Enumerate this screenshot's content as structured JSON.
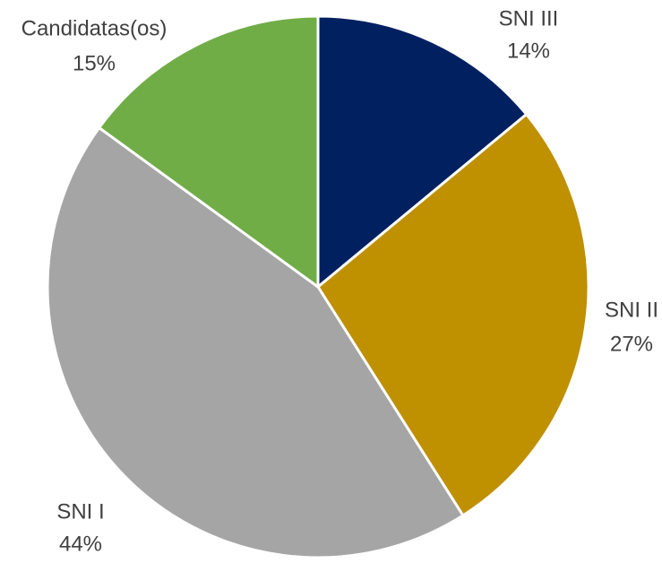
{
  "chart_data": {
    "type": "pie",
    "categories": [
      "SNI III",
      "SNI II",
      "SNI I",
      "Candidatas(os)"
    ],
    "values": [
      14,
      27,
      44,
      15
    ],
    "value_labels": [
      "14%",
      "27%",
      "44%",
      "15%"
    ],
    "colors": [
      "#002060",
      "#bf9000",
      "#a5a5a5",
      "#70ad47"
    ]
  }
}
